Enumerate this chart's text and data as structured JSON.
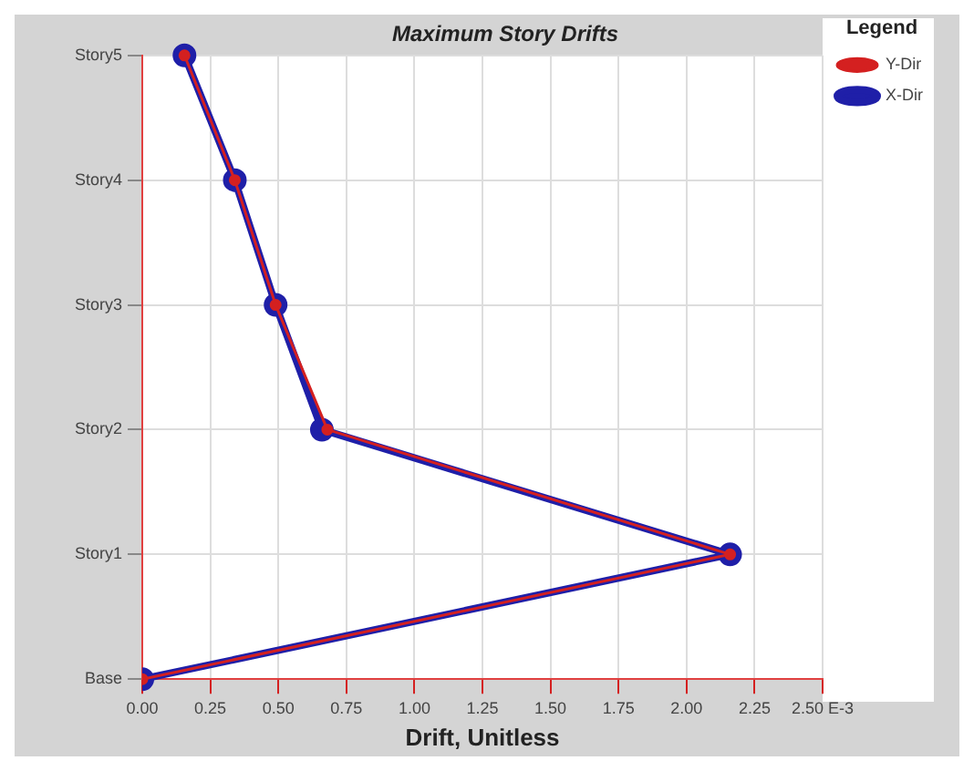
{
  "chart_data": {
    "type": "line",
    "orientation": "horizontal",
    "title": "Maximum Story Drifts",
    "xlabel": "Drift, Unitless",
    "legend_title": "Legend",
    "categories": [
      "Story5",
      "Story4",
      "Story3",
      "Story2",
      "Story1",
      "Base"
    ],
    "series": [
      {
        "name": "X-Dir",
        "color": "#1f1fa8",
        "values": [
          0.155,
          0.34,
          0.49,
          0.66,
          2.16,
          0
        ]
      },
      {
        "name": "Y-Dir",
        "color": "#d42020",
        "values": [
          0.155,
          0.34,
          0.49,
          0.68,
          2.16,
          0
        ]
      }
    ],
    "xlim": [
      0,
      2.5
    ],
    "xticks": [
      {
        "value": 0,
        "label": "0.00"
      },
      {
        "value": 0.25,
        "label": "0.25"
      },
      {
        "value": 0.5,
        "label": "0.50"
      },
      {
        "value": 0.75,
        "label": "0.75"
      },
      {
        "value": 1,
        "label": "1.00"
      },
      {
        "value": 1.25,
        "label": "1.25"
      },
      {
        "value": 1.5,
        "label": "1.50"
      },
      {
        "value": 1.75,
        "label": "1.75"
      },
      {
        "value": 2,
        "label": "2.00"
      },
      {
        "value": 2.25,
        "label": "2.25"
      },
      {
        "value": 2.5,
        "label": "2.50 E-3"
      }
    ],
    "grid": true,
    "legend": "right",
    "marker": "circle",
    "line_style": "solid"
  }
}
